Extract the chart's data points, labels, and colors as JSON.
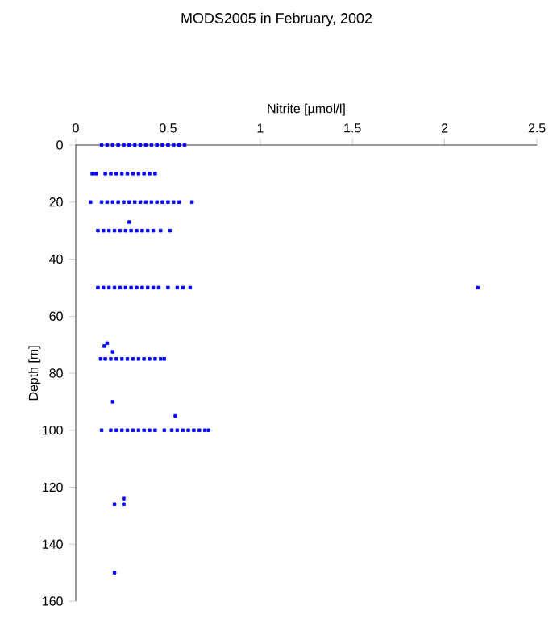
{
  "chart_data": {
    "type": "scatter",
    "title": "MODS2005 in February, 2002",
    "xlabel": "Nitrite [µmol/l]",
    "ylabel": "Depth [m]",
    "xlim": [
      0,
      2.5
    ],
    "xticks": [
      0,
      0.5,
      1,
      1.5,
      2,
      2.5
    ],
    "ylim": [
      160,
      0
    ],
    "yticks": [
      0,
      20,
      40,
      60,
      80,
      100,
      120,
      140,
      160
    ],
    "marker": "square",
    "series": [
      {
        "color": "#0000ff",
        "x": [
          0.14,
          0.17,
          0.2,
          0.23,
          0.26,
          0.29,
          0.32,
          0.35,
          0.38,
          0.41,
          0.44,
          0.47,
          0.5,
          0.53,
          0.56,
          0.59,
          0.09,
          0.11,
          0.16,
          0.19,
          0.22,
          0.25,
          0.28,
          0.31,
          0.34,
          0.37,
          0.4,
          0.43,
          0.08,
          0.14,
          0.17,
          0.2,
          0.23,
          0.26,
          0.29,
          0.32,
          0.35,
          0.38,
          0.41,
          0.44,
          0.47,
          0.5,
          0.53,
          0.56,
          0.63,
          0.29,
          0.12,
          0.15,
          0.18,
          0.21,
          0.24,
          0.27,
          0.3,
          0.33,
          0.36,
          0.39,
          0.42,
          0.46,
          0.51,
          0.12,
          0.15,
          0.18,
          0.21,
          0.24,
          0.27,
          0.3,
          0.33,
          0.36,
          0.39,
          0.42,
          0.45,
          0.5,
          0.55,
          0.58,
          0.62,
          2.18,
          0.155,
          0.17,
          0.2,
          0.135,
          0.16,
          0.19,
          0.22,
          0.25,
          0.28,
          0.31,
          0.34,
          0.37,
          0.4,
          0.43,
          0.46,
          0.48,
          0.2,
          0.54,
          0.14,
          0.19,
          0.22,
          0.25,
          0.28,
          0.31,
          0.34,
          0.37,
          0.4,
          0.43,
          0.48,
          0.52,
          0.55,
          0.58,
          0.61,
          0.64,
          0.67,
          0.7,
          0.72,
          0.26,
          0.21,
          0.26,
          0.21
        ],
        "values": [
          0,
          0,
          0,
          0,
          0,
          0,
          0,
          0,
          0,
          0,
          0,
          0,
          0,
          0,
          0,
          0,
          10,
          10,
          10,
          10,
          10,
          10,
          10,
          10,
          10,
          10,
          10,
          10,
          20,
          20,
          20,
          20,
          20,
          20,
          20,
          20,
          20,
          20,
          20,
          20,
          20,
          20,
          20,
          20,
          20,
          27,
          30,
          30,
          30,
          30,
          30,
          30,
          30,
          30,
          30,
          30,
          30,
          30,
          30,
          50,
          50,
          50,
          50,
          50,
          50,
          50,
          50,
          50,
          50,
          50,
          50,
          50,
          50,
          50,
          50,
          50,
          70.5,
          69.5,
          72.5,
          75,
          75,
          75,
          75,
          75,
          75,
          75,
          75,
          75,
          75,
          75,
          75,
          75,
          90,
          95,
          100,
          100,
          100,
          100,
          100,
          100,
          100,
          100,
          100,
          100,
          100,
          100,
          100,
          100,
          100,
          100,
          100,
          100,
          100,
          124,
          126,
          126,
          150
        ]
      }
    ]
  }
}
